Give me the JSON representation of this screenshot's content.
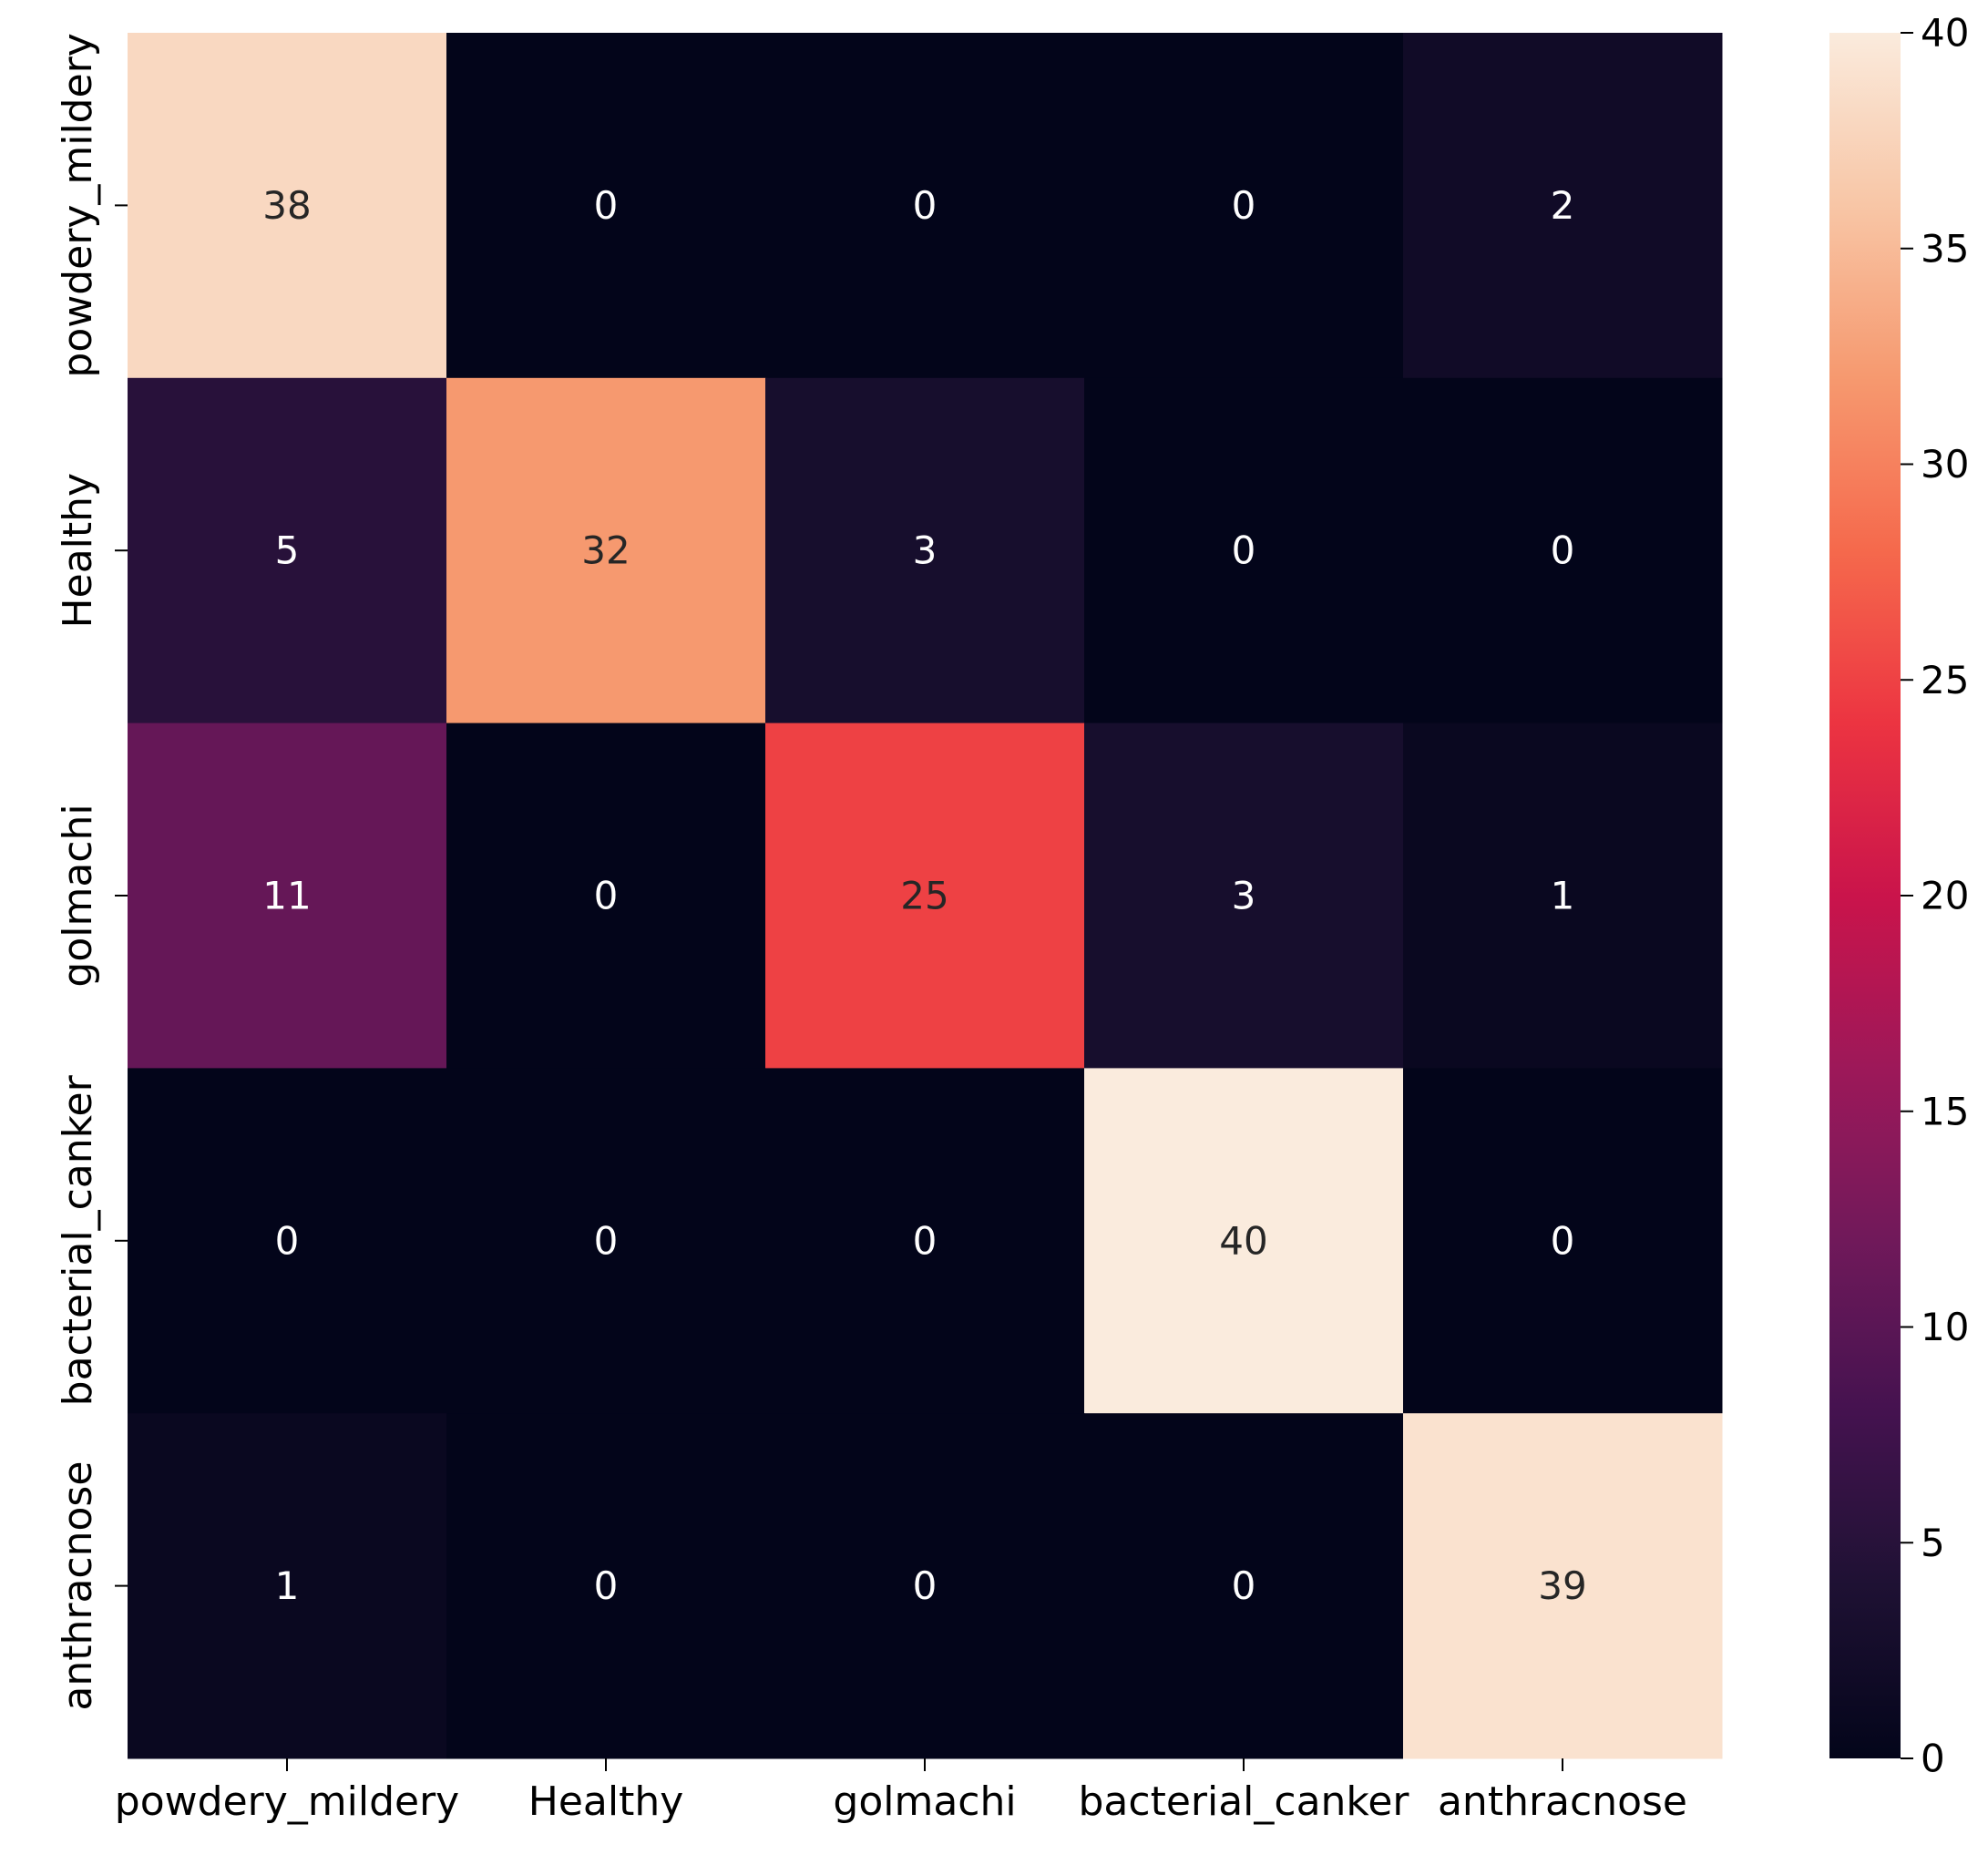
{
  "chart_data": {
    "type": "heatmap",
    "title": "",
    "xlabel": "",
    "ylabel": "",
    "rows": [
      "powdery_mildery",
      "Healthy",
      "golmachi",
      "bacterial_canker",
      "anthracnose"
    ],
    "columns": [
      "powdery_mildery",
      "Healthy",
      "golmachi",
      "bacterial_canker",
      "anthracnose"
    ],
    "values": [
      [
        38,
        0,
        0,
        0,
        2
      ],
      [
        5,
        32,
        3,
        0,
        0
      ],
      [
        11,
        0,
        25,
        3,
        1
      ],
      [
        0,
        0,
        0,
        40,
        0
      ],
      [
        1,
        0,
        0,
        0,
        39
      ]
    ],
    "colorbar": {
      "min": 0,
      "max": 40,
      "ticks": [
        0,
        5,
        10,
        15,
        20,
        25,
        30,
        35,
        40
      ],
      "colormap": "rocket"
    }
  }
}
